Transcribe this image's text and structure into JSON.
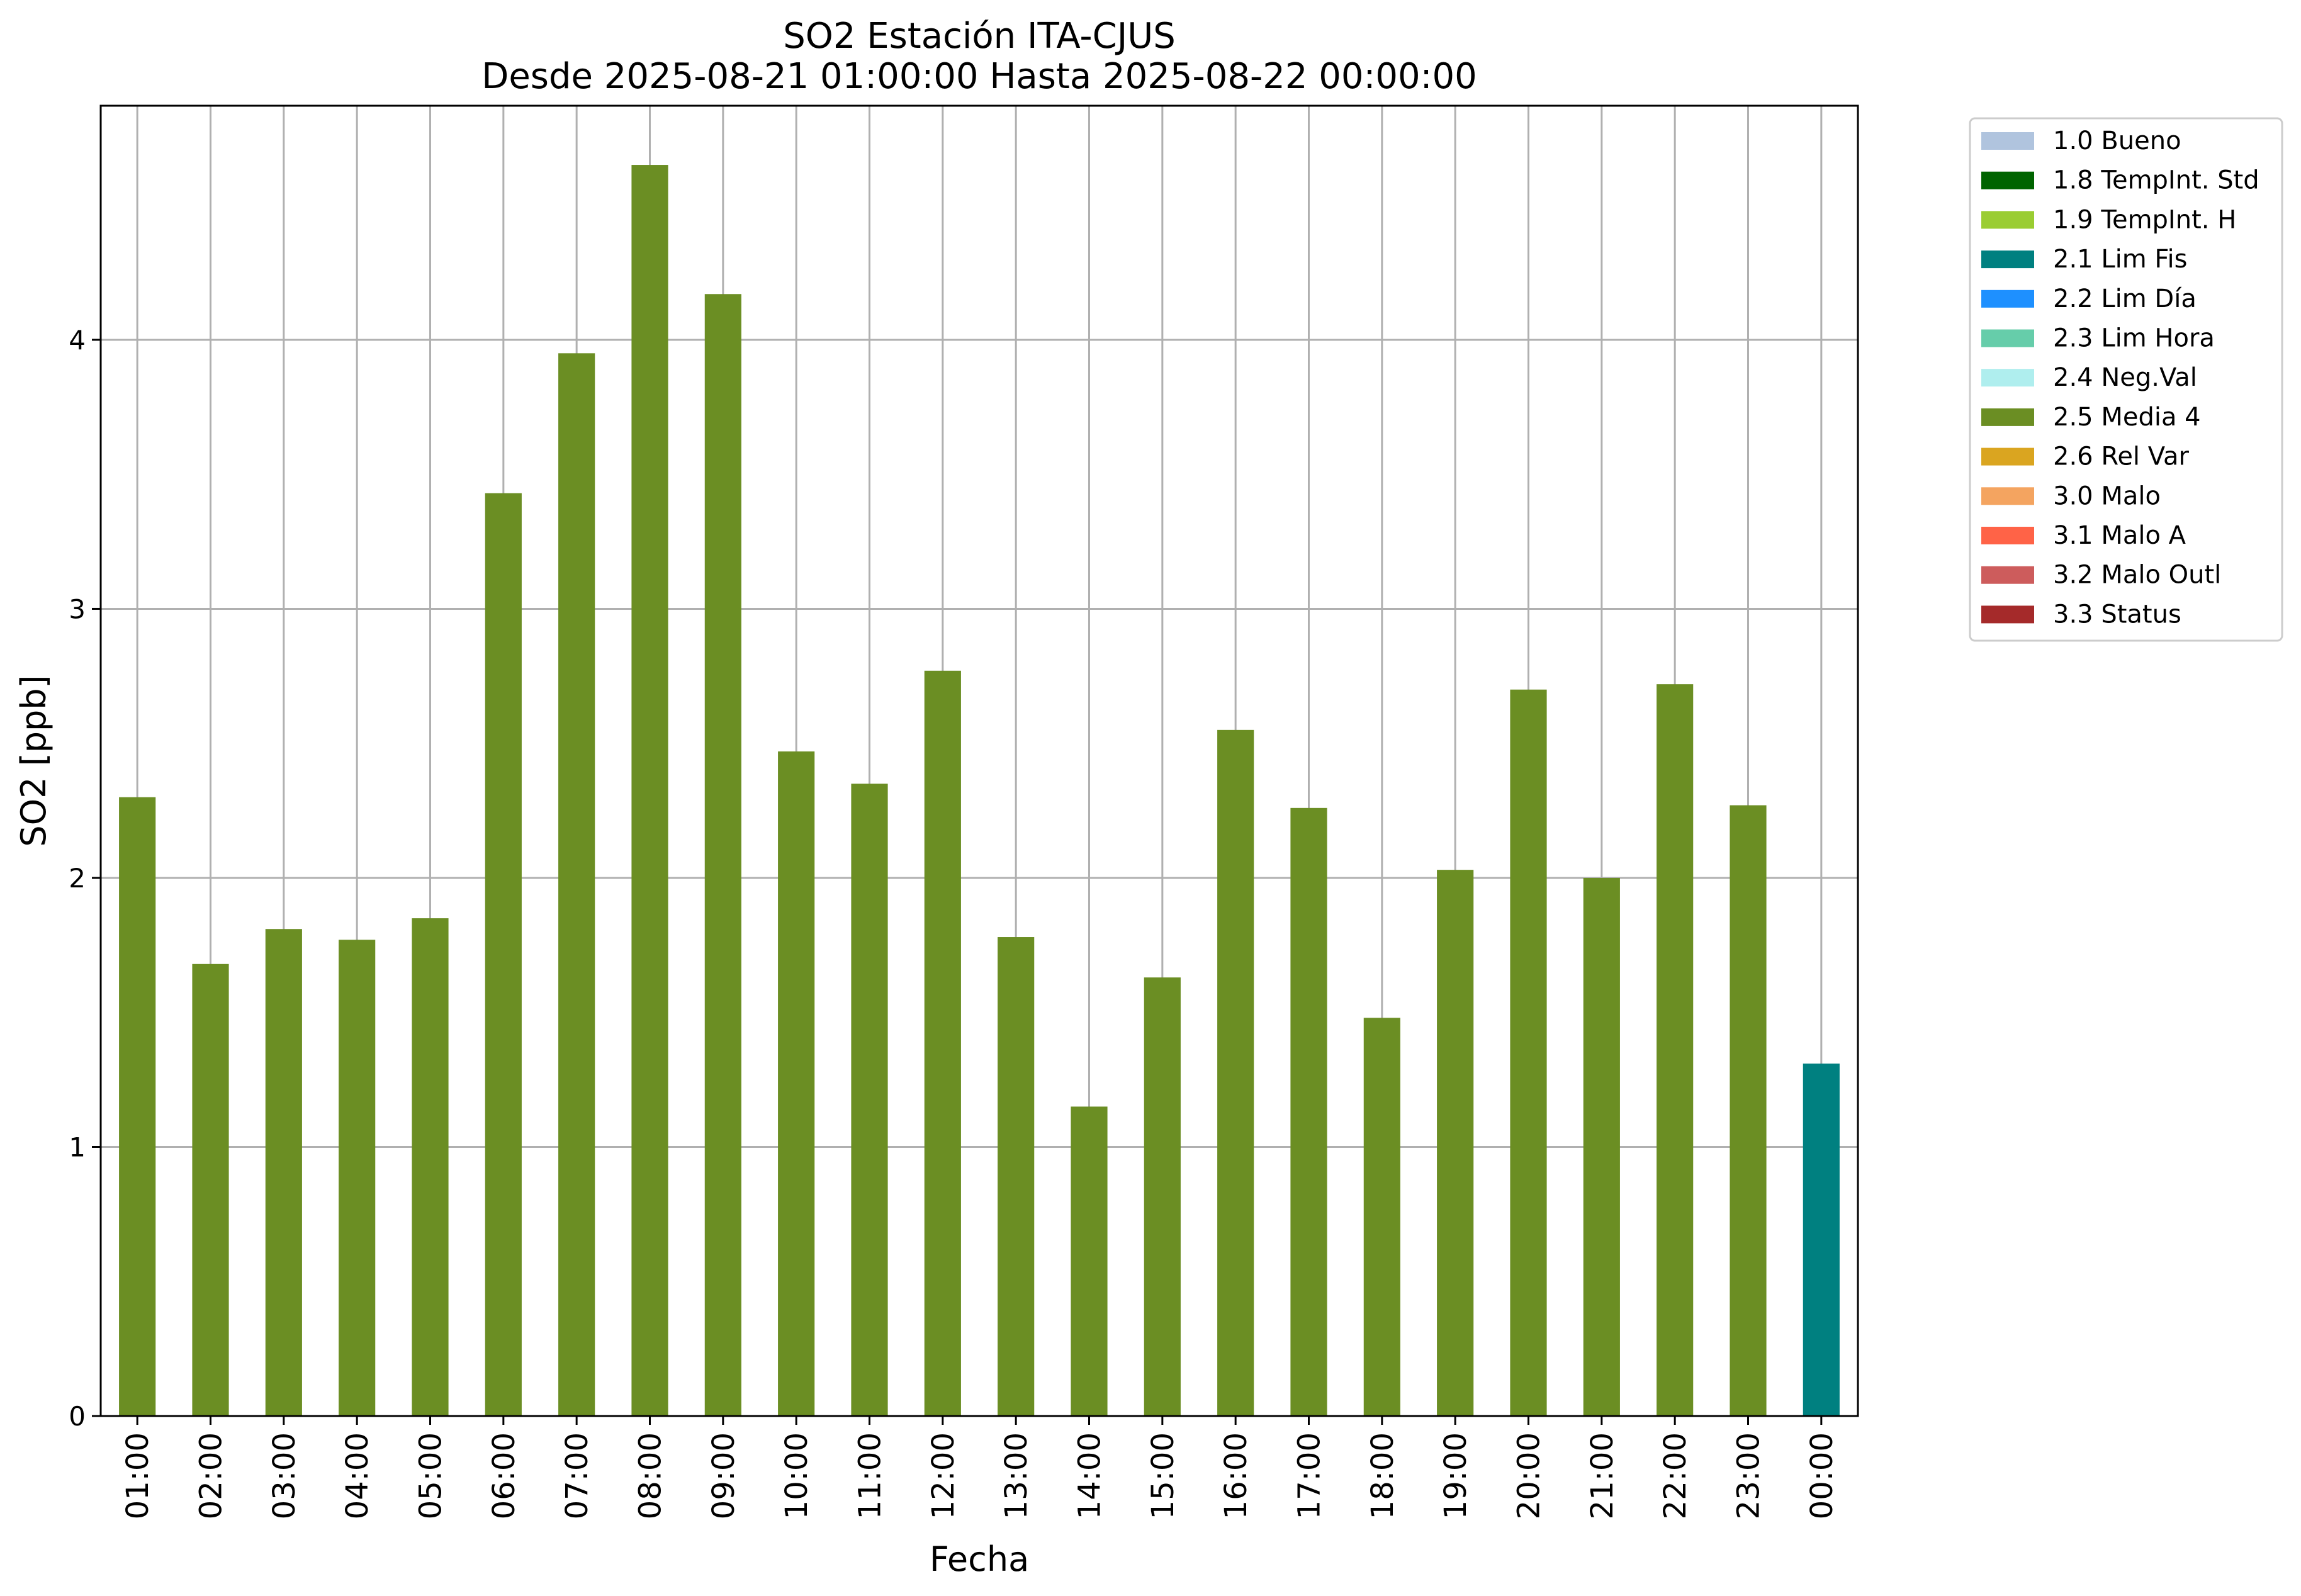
{
  "chart_data": {
    "type": "bar",
    "title": [
      "SO2 Estación ITA-CJUS",
      "Desde 2025-08-21 01:00:00 Hasta 2025-08-22 00:00:00"
    ],
    "xlabel": "Fecha",
    "ylabel": "SO2 [ppb]",
    "ylim": [
      0,
      4.87
    ],
    "yticks": [
      0,
      1,
      2,
      3,
      4
    ],
    "grid": true,
    "legend_position": "outside top-right",
    "categories": [
      "01:00",
      "02:00",
      "03:00",
      "04:00",
      "05:00",
      "06:00",
      "07:00",
      "08:00",
      "09:00",
      "10:00",
      "11:00",
      "12:00",
      "13:00",
      "14:00",
      "15:00",
      "16:00",
      "17:00",
      "18:00",
      "19:00",
      "20:00",
      "21:00",
      "22:00",
      "23:00",
      "00:00"
    ],
    "values": [
      2.3,
      1.68,
      1.81,
      1.77,
      1.85,
      3.43,
      3.95,
      4.65,
      4.17,
      2.47,
      2.35,
      2.77,
      1.78,
      1.15,
      1.63,
      2.55,
      2.26,
      1.48,
      2.03,
      2.7,
      2.0,
      2.72,
      2.27,
      1.31
    ],
    "flags": [
      "2.5 Media 4",
      "2.5 Media 4",
      "2.5 Media 4",
      "2.5 Media 4",
      "2.5 Media 4",
      "2.5 Media 4",
      "2.5 Media 4",
      "2.5 Media 4",
      "2.5 Media 4",
      "2.5 Media 4",
      "2.5 Media 4",
      "2.5 Media 4",
      "2.5 Media 4",
      "2.5 Media 4",
      "2.5 Media 4",
      "2.5 Media 4",
      "2.5 Media 4",
      "2.5 Media 4",
      "2.5 Media 4",
      "2.5 Media 4",
      "2.5 Media 4",
      "2.5 Media 4",
      "2.5 Media 4",
      "2.1 Lim Fis"
    ],
    "legend": [
      {
        "label": "1.0 Bueno",
        "color": "#b0c4de"
      },
      {
        "label": "1.8 TempInt. Std",
        "color": "#006400"
      },
      {
        "label": "1.9 TempInt. H",
        "color": "#9acd32"
      },
      {
        "label": "2.1 Lim Fis",
        "color": "#008080"
      },
      {
        "label": "2.2 Lim Día",
        "color": "#1e90ff"
      },
      {
        "label": "2.3 Lim Hora",
        "color": "#66cdaa"
      },
      {
        "label": "2.4 Neg.Val",
        "color": "#afeeee"
      },
      {
        "label": "2.5 Media 4",
        "color": "#6b8e23"
      },
      {
        "label": "2.6 Rel Var",
        "color": "#daa520"
      },
      {
        "label": "3.0 Malo",
        "color": "#f4a460"
      },
      {
        "label": "3.1 Malo A",
        "color": "#ff6347"
      },
      {
        "label": "3.2 Malo Outl",
        "color": "#cd5c5c"
      },
      {
        "label": "3.3 Status",
        "color": "#a52a2a"
      }
    ]
  }
}
